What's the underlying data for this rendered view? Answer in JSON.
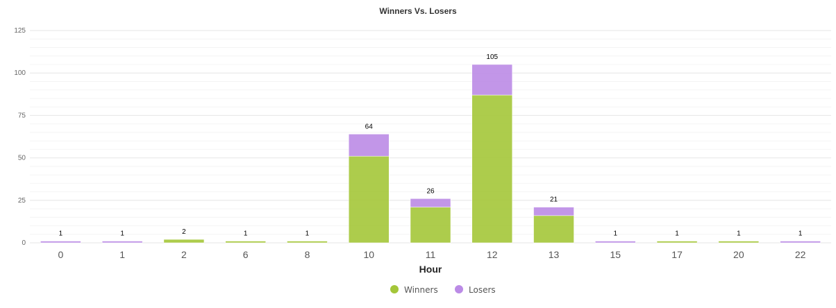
{
  "chart_data": {
    "type": "bar",
    "stacked": true,
    "title": "Winners Vs. Losers",
    "xlabel": "Hour",
    "ylabel": "",
    "ylim": [
      0,
      125
    ],
    "yticks": [
      0,
      25,
      50,
      75,
      100,
      125
    ],
    "grid": true,
    "legend_position": "bottom-center",
    "categories": [
      "0",
      "1",
      "2",
      "6",
      "8",
      "10",
      "11",
      "12",
      "13",
      "15",
      "17",
      "20",
      "22"
    ],
    "series": [
      {
        "name": "Winners",
        "color": "#a4c639",
        "values": [
          0,
          0,
          2,
          1,
          1,
          51,
          21,
          87,
          16,
          0,
          1,
          1,
          0
        ]
      },
      {
        "name": "Losers",
        "color": "#bb8be6",
        "values": [
          1,
          1,
          0,
          0,
          0,
          13,
          5,
          18,
          5,
          1,
          0,
          0,
          1
        ]
      }
    ],
    "totals": [
      1,
      1,
      2,
      1,
      1,
      64,
      26,
      105,
      21,
      1,
      1,
      1,
      1
    ]
  }
}
